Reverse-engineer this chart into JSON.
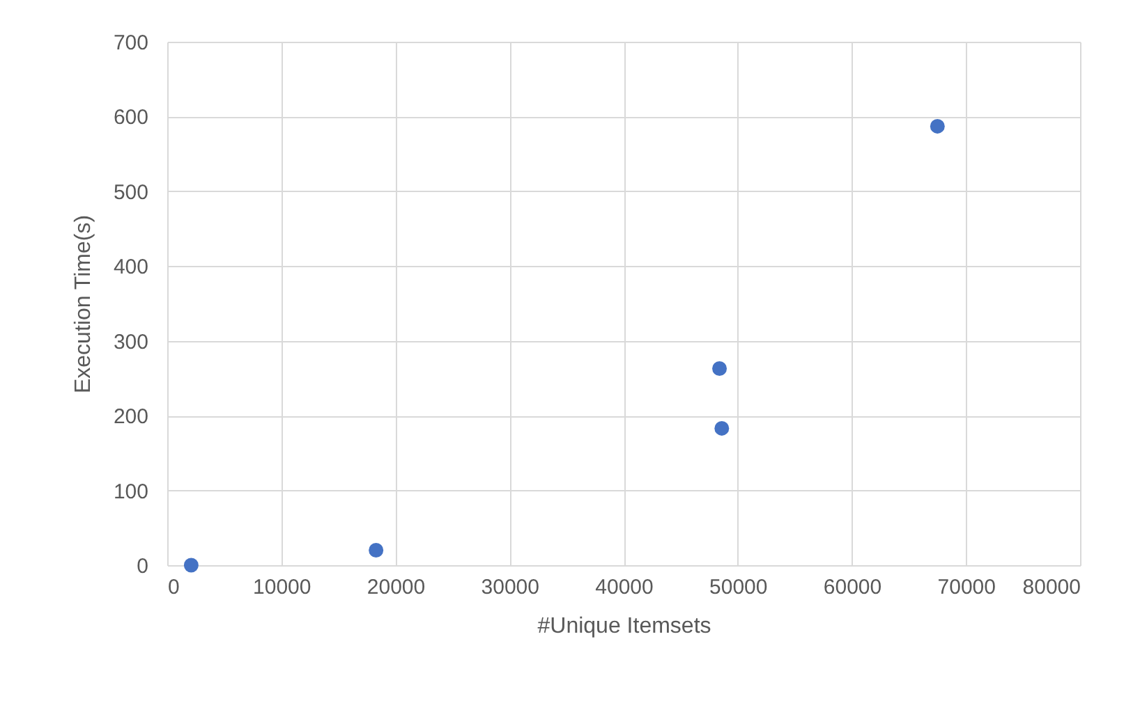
{
  "chart_data": {
    "type": "scatter",
    "xlabel": "#Unique Itemsets",
    "ylabel": "Execution Time(s)",
    "x": [
      2100,
      18300,
      48400,
      48600,
      67500
    ],
    "series": [
      {
        "color": "#4472c4",
        "values": [
          0,
          20,
          263,
          183,
          587
        ]
      }
    ],
    "xlim": [
      0,
      80000
    ],
    "xticks": [
      0,
      10000,
      20000,
      30000,
      40000,
      50000,
      60000,
      70000,
      80000
    ],
    "ylim": [
      0,
      700
    ],
    "yticks": [
      0,
      100,
      200,
      300,
      400,
      500,
      600,
      700
    ],
    "grid": true,
    "marker": "circle",
    "legend": false
  }
}
